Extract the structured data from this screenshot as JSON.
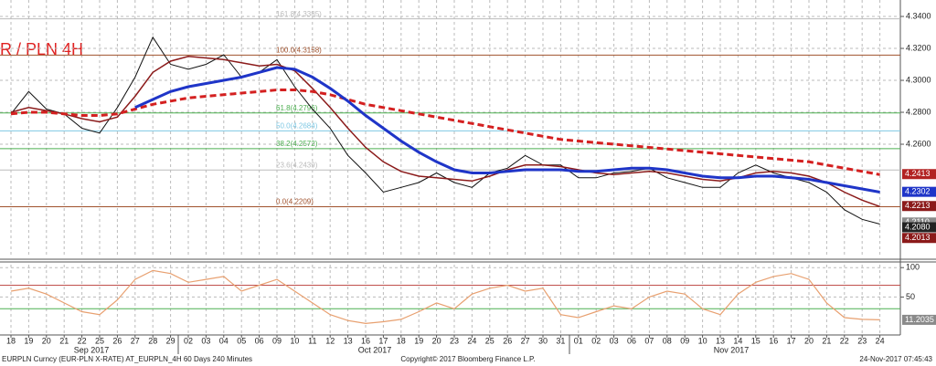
{
  "chart_data": [
    {
      "type": "line",
      "title": "R / PLN 4H",
      "categories": [
        "18",
        "19",
        "20",
        "21",
        "22",
        "25",
        "26",
        "27",
        "28",
        "29",
        "02",
        "03",
        "04",
        "05",
        "06",
        "09",
        "10",
        "11",
        "12",
        "13",
        "16",
        "17",
        "18",
        "19",
        "20",
        "23",
        "24",
        "25",
        "26",
        "27",
        "30",
        "31",
        "01",
        "02",
        "03",
        "06",
        "07",
        "08",
        "09",
        "10",
        "13",
        "14",
        "15",
        "16",
        "17",
        "20",
        "21",
        "22",
        "23",
        "24"
      ],
      "month_labels": [
        "Sep 2017",
        "Oct 2017",
        "Nov 2017"
      ],
      "series": [
        {
          "color": "#111111",
          "width": 1,
          "dashed": false,
          "values": [
            4.279,
            4.293,
            4.282,
            4.279,
            4.27,
            4.267,
            4.283,
            4.302,
            4.327,
            4.31,
            4.307,
            4.31,
            4.316,
            4.302,
            4.305,
            4.313,
            4.296,
            4.282,
            4.27,
            4.253,
            4.242,
            4.23,
            4.233,
            4.236,
            4.242,
            4.236,
            4.233,
            4.242,
            4.245,
            4.253,
            4.247,
            4.247,
            4.239,
            4.239,
            4.242,
            4.243,
            4.245,
            4.239,
            4.236,
            4.233,
            4.233,
            4.242,
            4.247,
            4.242,
            4.239,
            4.236,
            4.23,
            4.219,
            4.213,
            4.21
          ]
        },
        {
          "color": "#8b1a1a",
          "width": 1.5,
          "dashed": false,
          "values": [
            4.28,
            4.283,
            4.281,
            4.279,
            4.276,
            4.274,
            4.277,
            4.29,
            4.305,
            4.312,
            4.315,
            4.314,
            4.313,
            4.311,
            4.309,
            4.31,
            4.306,
            4.295,
            4.283,
            4.27,
            4.258,
            4.249,
            4.243,
            4.24,
            4.239,
            4.238,
            4.237,
            4.24,
            4.244,
            4.247,
            4.247,
            4.246,
            4.244,
            4.242,
            4.241,
            4.242,
            4.243,
            4.242,
            4.24,
            4.238,
            4.237,
            4.239,
            4.242,
            4.243,
            4.242,
            4.24,
            4.236,
            4.23,
            4.225,
            4.221
          ]
        },
        {
          "color": "#d42020",
          "width": 3,
          "dashed": true,
          "values": [
            4.279,
            4.28,
            4.28,
            4.279,
            4.278,
            4.278,
            4.279,
            4.282,
            4.285,
            4.287,
            4.289,
            4.29,
            4.291,
            4.292,
            4.293,
            4.294,
            4.294,
            4.293,
            4.291,
            4.288,
            4.285,
            4.283,
            4.281,
            4.279,
            4.277,
            4.275,
            4.273,
            4.271,
            4.269,
            4.267,
            4.265,
            4.263,
            4.262,
            4.261,
            4.26,
            4.259,
            4.258,
            4.257,
            4.256,
            4.255,
            4.254,
            4.253,
            4.252,
            4.251,
            4.25,
            4.249,
            4.247,
            4.245,
            4.243,
            4.241
          ]
        },
        {
          "color": "#1f35c8",
          "width": 3,
          "dashed": false,
          "values": [
            null,
            null,
            null,
            null,
            null,
            null,
            null,
            4.283,
            4.288,
            4.293,
            4.296,
            4.298,
            4.3,
            4.302,
            4.305,
            4.308,
            4.307,
            4.302,
            4.295,
            4.287,
            4.278,
            4.27,
            4.262,
            4.255,
            4.249,
            4.244,
            4.242,
            4.242,
            4.243,
            4.244,
            4.244,
            4.244,
            4.243,
            4.243,
            4.244,
            4.245,
            4.245,
            4.244,
            4.242,
            4.24,
            4.239,
            4.239,
            4.24,
            4.24,
            4.239,
            4.238,
            4.236,
            4.234,
            4.232,
            4.23
          ]
        }
      ],
      "fib_levels": [
        {
          "label": "161.8(4.3385)",
          "value": 4.3385,
          "color": "#bbbbbb"
        },
        {
          "label": "100.0(4.3158)",
          "value": 4.3158,
          "color": "#a0522d"
        },
        {
          "label": "61.8(4.2796)",
          "value": 4.2796,
          "color": "#4caf50"
        },
        {
          "label": "50.0(4.2684)",
          "value": 4.2684,
          "color": "#7ec8e3"
        },
        {
          "label": "38.2(4.2572)",
          "value": 4.2572,
          "color": "#4caf50"
        },
        {
          "label": "23.6(4.2439)",
          "value": 4.2439,
          "color": "#bbbbbb"
        },
        {
          "label": "0.0(4.2209)",
          "value": 4.2209,
          "color": "#a0522d"
        }
      ],
      "last_values": [
        {
          "value": 4.2413,
          "label": "4.2413",
          "color": "#b22222"
        },
        {
          "value": 4.2302,
          "label": "4.2302",
          "color": "#1f35c8"
        },
        {
          "value": 4.2213,
          "label": "4.2213",
          "color": "#8b1a1a"
        },
        {
          "value": 4.211,
          "label": "4.2110",
          "color": "#8a8a8a"
        },
        {
          "value": 4.208,
          "label": "4.2080",
          "color": "#222222"
        },
        {
          "value": 4.2013,
          "label": "4.2013",
          "color": "#8b1a1a"
        }
      ],
      "ylim": [
        4.1903,
        4.3503
      ],
      "yticks": [
        {
          "value": 4.26,
          "label": "4.2600"
        },
        {
          "value": 4.28,
          "label": "4.2800"
        },
        {
          "value": 4.3,
          "label": "4.3000"
        },
        {
          "value": 4.32,
          "label": "4.3200"
        },
        {
          "value": 4.34,
          "label": "4.3400"
        }
      ],
      "grid": true
    },
    {
      "type": "line",
      "series": [
        {
          "color": "#e8a070",
          "width": 1.2,
          "dashed": false,
          "values": [
            60,
            65,
            55,
            40,
            25,
            20,
            45,
            80,
            95,
            90,
            75,
            80,
            85,
            60,
            70,
            80,
            60,
            40,
            20,
            10,
            5,
            8,
            12,
            25,
            40,
            30,
            55,
            65,
            70,
            60,
            65,
            20,
            15,
            25,
            35,
            30,
            50,
            60,
            55,
            30,
            20,
            55,
            75,
            85,
            90,
            80,
            40,
            15,
            12,
            11.2035
          ]
        }
      ],
      "levels": [
        {
          "value": 70,
          "color": "#c0504d"
        },
        {
          "value": 30,
          "color": "#4caf50"
        }
      ],
      "last_value": {
        "value": 11.2035,
        "label": "11.2035",
        "color": "#8a8a8a"
      },
      "ylim": [
        -13,
        105
      ],
      "yticks": [
        50,
        100
      ],
      "grid": true
    }
  ],
  "footer": {
    "left": "EURPLN Curncy (EUR-PLN X-RATE) AT_EURPLN_4H 60 Days 240 Minutes",
    "center": "Copyright© 2017 Bloomberg Finance L.P.",
    "right": "24-Nov-2017 07:45:43"
  }
}
